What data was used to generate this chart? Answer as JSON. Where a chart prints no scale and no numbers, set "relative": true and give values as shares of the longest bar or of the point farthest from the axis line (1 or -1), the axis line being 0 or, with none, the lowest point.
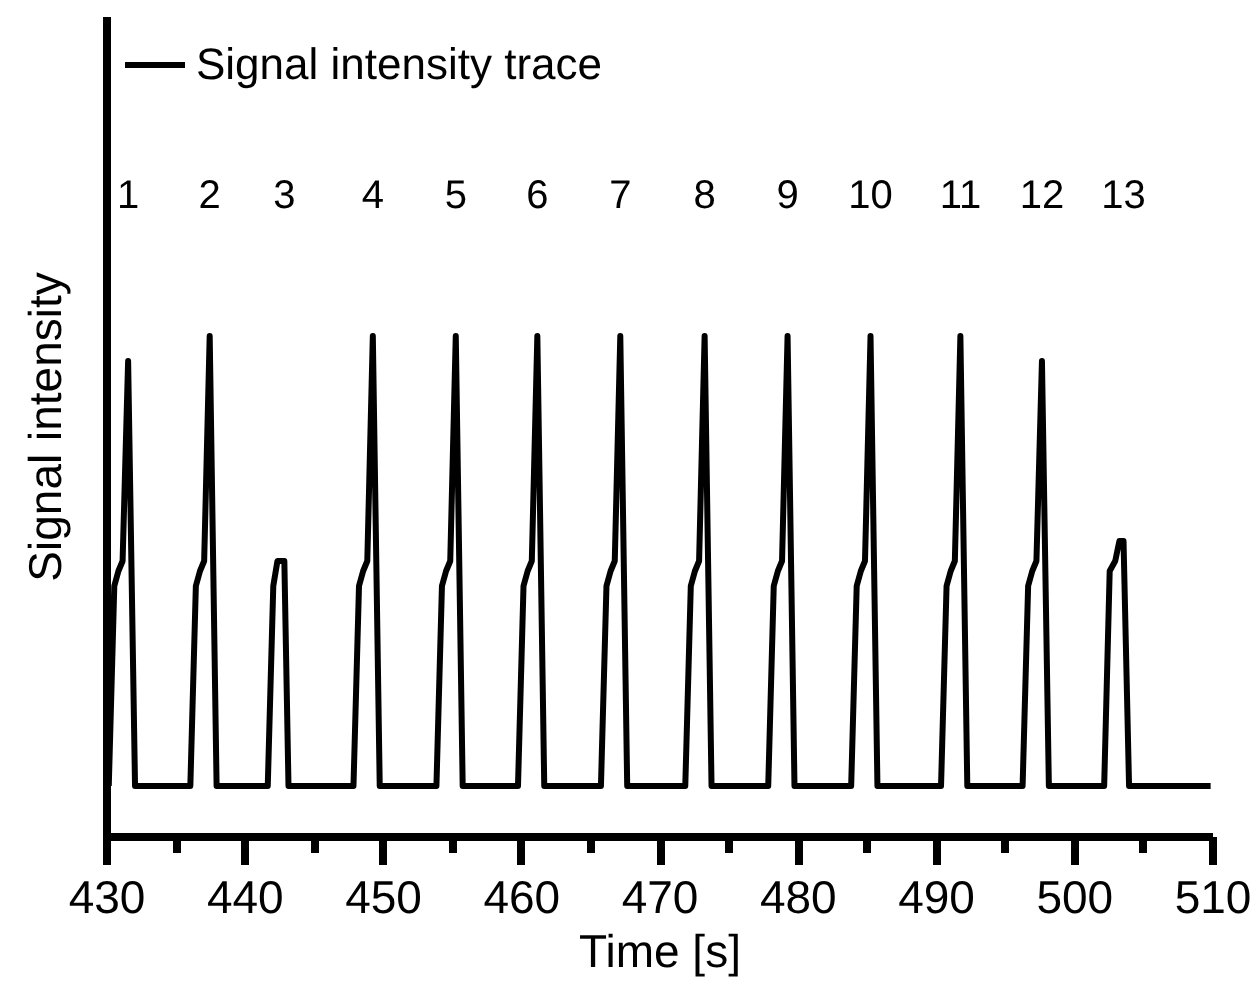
{
  "chart_data": {
    "type": "line",
    "xlabel": "Time [s]",
    "ylabel": "Signal intensity",
    "relative": true,
    "legend": "top left",
    "grid": false,
    "xlim": [
      430,
      510
    ],
    "xticks": [
      430,
      {
        "value": 435,
        "label": null
      },
      440,
      {
        "value": 445,
        "label": null
      },
      450,
      {
        "value": 455,
        "label": null
      },
      460,
      {
        "value": 465,
        "label": null
      },
      470,
      {
        "value": 475,
        "label": null
      },
      480,
      {
        "value": 485,
        "label": null
      },
      490,
      {
        "value": 495,
        "label": null
      },
      500,
      {
        "value": 505,
        "label": null
      },
      510
    ],
    "series": [
      {
        "name": "Signal intensity trace",
        "color": "#000000",
        "x": [
          430.2,
          430.6,
          430.9,
          431.2,
          431.6,
          432.1,
          436.1,
          436.5,
          436.8,
          437.1,
          437.5,
          438.0,
          441.7,
          442.1,
          442.4,
          442.9,
          443.2,
          447.9,
          448.3,
          448.6,
          448.9,
          449.3,
          449.8,
          453.9,
          454.3,
          454.6,
          454.9,
          455.3,
          455.8,
          459.8,
          460.2,
          460.5,
          460.8,
          461.2,
          461.7,
          465.8,
          466.2,
          466.5,
          466.8,
          467.2,
          467.7,
          471.9,
          472.3,
          472.6,
          472.9,
          473.3,
          473.8,
          477.9,
          478.3,
          478.6,
          478.9,
          479.3,
          479.8,
          483.9,
          484.3,
          484.6,
          484.9,
          485.3,
          485.8,
          490.4,
          490.8,
          491.1,
          491.4,
          491.8,
          492.3,
          496.3,
          496.7,
          497.0,
          497.3,
          497.7,
          498.2,
          502.2,
          502.6,
          503.0,
          503.3,
          503.6,
          504.0,
          509.9
        ],
        "values": [
          0.1,
          0.5,
          0.53,
          0.55,
          0.95,
          0.1,
          0.1,
          0.5,
          0.53,
          0.55,
          1,
          0.1,
          0.1,
          0.5,
          0.55,
          0.55,
          0.1,
          0.1,
          0.5,
          0.53,
          0.55,
          1,
          0.1,
          0.1,
          0.5,
          0.53,
          0.55,
          1,
          0.1,
          0.1,
          0.5,
          0.53,
          0.55,
          1,
          0.1,
          0.1,
          0.5,
          0.53,
          0.55,
          1,
          0.1,
          0.1,
          0.5,
          0.53,
          0.55,
          1,
          0.1,
          0.1,
          0.5,
          0.53,
          0.55,
          1,
          0.1,
          0.1,
          0.5,
          0.53,
          0.55,
          1,
          0.1,
          0.1,
          0.5,
          0.53,
          0.55,
          1,
          0.1,
          0.1,
          0.5,
          0.53,
          0.55,
          0.95,
          0.1,
          0.1,
          0.53,
          0.55,
          0.59,
          0.59,
          0.1,
          0.1
        ]
      }
    ],
    "annotations": [
      "1",
      "2",
      "3",
      "4",
      "5",
      "6",
      "7",
      "8",
      "9",
      "10",
      "11",
      "12",
      "13"
    ]
  }
}
